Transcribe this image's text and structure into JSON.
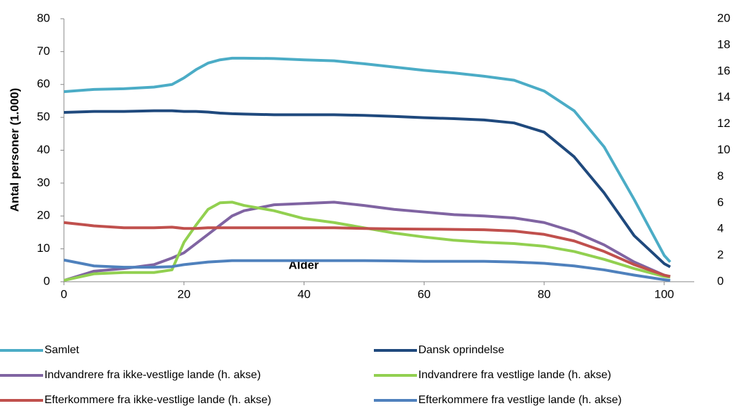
{
  "chart_data": {
    "type": "line",
    "xlabel": "Alder",
    "ylabel": "Antal personer (1.000)",
    "x": [
      0,
      5,
      10,
      15,
      18,
      20,
      22,
      24,
      26,
      28,
      30,
      35,
      40,
      45,
      50,
      55,
      60,
      65,
      70,
      75,
      80,
      85,
      90,
      95,
      100,
      101
    ],
    "xlim": [
      0,
      105
    ],
    "xticks": [
      0,
      20,
      40,
      60,
      80,
      100
    ],
    "ylim": [
      0,
      80
    ],
    "yticks": [
      0,
      10,
      20,
      30,
      40,
      50,
      60,
      70,
      80
    ],
    "y2lim": [
      0,
      20
    ],
    "y2ticks": [
      0,
      2,
      4,
      6,
      8,
      10,
      12,
      14,
      16,
      18,
      20
    ],
    "grid": false,
    "legend": "bottom",
    "series": [
      {
        "name": "Samlet",
        "color": "#4bacc6",
        "values": [
          57.8,
          58.5,
          58.7,
          59.2,
          60,
          62,
          64.5,
          66.5,
          67.5,
          68,
          68,
          67.9,
          67.5,
          67.2,
          66.3,
          65.3,
          64.3,
          63.5,
          62.5,
          61.3,
          58,
          52,
          41,
          25,
          8,
          6
        ]
      },
      {
        "name": "Dansk oprindelse",
        "color": "#1f497d",
        "values": [
          51.5,
          51.8,
          51.8,
          52,
          52,
          51.8,
          51.8,
          51.6,
          51.3,
          51.1,
          51,
          50.8,
          50.8,
          50.8,
          50.6,
          50.3,
          49.9,
          49.6,
          49.2,
          48.3,
          45.5,
          38,
          27,
          14,
          5.5,
          4.5
        ]
      },
      {
        "name": "Indvandrere fra ikke-vestlige lande (h. akse)",
        "color": "#8064a2",
        "axis": "y2",
        "values": [
          0.1,
          0.8,
          1.0,
          1.3,
          1.8,
          2.2,
          2.9,
          3.6,
          4.3,
          5.0,
          5.4,
          5.85,
          5.95,
          6.05,
          5.8,
          5.5,
          5.3,
          5.1,
          5.0,
          4.85,
          4.5,
          3.8,
          2.8,
          1.5,
          0.5,
          0.4
        ]
      },
      {
        "name": "Indvandrere fra vestlige lande (h. akse)",
        "color": "#92d050",
        "axis": "y2",
        "values": [
          0.1,
          0.6,
          0.7,
          0.7,
          0.9,
          3.0,
          4.3,
          5.5,
          6.0,
          6.05,
          5.8,
          5.4,
          4.8,
          4.5,
          4.1,
          3.7,
          3.4,
          3.15,
          3.0,
          2.9,
          2.7,
          2.3,
          1.7,
          1.0,
          0.4,
          0.35
        ]
      },
      {
        "name": "Efterkommere fra ikke-vestlige lande (h. akse)",
        "color": "#c0504d",
        "axis": "y2",
        "values": [
          4.5,
          4.25,
          4.1,
          4.1,
          4.15,
          4.05,
          4.05,
          4.1,
          4.1,
          4.1,
          4.1,
          4.1,
          4.1,
          4.1,
          4.05,
          4.02,
          4.0,
          3.98,
          3.95,
          3.85,
          3.6,
          3.1,
          2.3,
          1.3,
          0.5,
          0.4
        ]
      },
      {
        "name": "Efterkommere fra vestlige lande (h. akse)",
        "color": "#4f81bd",
        "axis": "y2",
        "values": [
          1.65,
          1.2,
          1.1,
          1.1,
          1.15,
          1.3,
          1.4,
          1.5,
          1.55,
          1.6,
          1.6,
          1.6,
          1.6,
          1.6,
          1.6,
          1.58,
          1.55,
          1.55,
          1.55,
          1.5,
          1.4,
          1.2,
          0.9,
          0.5,
          0.15,
          0.1
        ]
      }
    ]
  }
}
